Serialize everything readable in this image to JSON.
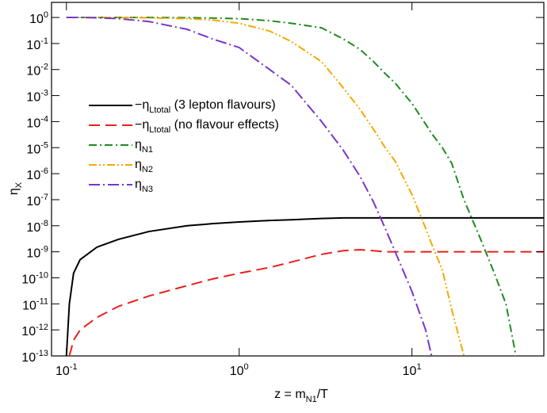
{
  "chart_data": {
    "type": "line",
    "xlabel": "z = m_{N1}/T",
    "ylabel": "η_{X}",
    "xscale": "log",
    "yscale": "log",
    "legend": "center left",
    "xlim": [
      0.082,
      58
    ],
    "ylim": [
      1e-13,
      3.8
    ],
    "xticks": [
      {
        "value": 0.1,
        "label": "10^{-1}"
      },
      {
        "value": 1,
        "label": "10^{0}"
      },
      {
        "value": 10,
        "label": "10^{1}"
      }
    ],
    "yticks": [
      {
        "value": 1,
        "label": "10^{0}"
      },
      {
        "value": 0.1,
        "label": "10^{-1}"
      },
      {
        "value": 0.01,
        "label": "10^{-2}"
      },
      {
        "value": 0.001,
        "label": "10^{-3}"
      },
      {
        "value": 0.0001,
        "label": "10^{-4}"
      },
      {
        "value": 1e-05,
        "label": "10^{-5}"
      },
      {
        "value": 1e-06,
        "label": "10^{-6}"
      },
      {
        "value": 1e-07,
        "label": "10^{-7}"
      },
      {
        "value": 1e-08,
        "label": "10^{-8}"
      },
      {
        "value": 1e-09,
        "label": "10^{-9}"
      },
      {
        "value": 1e-10,
        "label": "10^{-10}"
      },
      {
        "value": 1e-11,
        "label": "10^{-11}"
      },
      {
        "value": 1e-12,
        "label": "10^{-12}"
      },
      {
        "value": 1e-13,
        "label": "10^{-13}"
      }
    ],
    "x": [
      0.1,
      0.104,
      0.11,
      0.12,
      0.15,
      0.2,
      0.3,
      0.5,
      0.7,
      1,
      1.5,
      2,
      3,
      4,
      5,
      6,
      7,
      8,
      10,
      12,
      13,
      15,
      17,
      20,
      25,
      30,
      35,
      40,
      50,
      58
    ],
    "series": [
      {
        "name": "−η_{Ltotal}  (3 lepton flavours)",
        "color": "#000000",
        "dash": "solid",
        "values": [
          1e-13,
          1e-11,
          1.5e-10,
          5e-10,
          1.5e-09,
          3e-09,
          6e-09,
          1e-08,
          1.2e-08,
          1.4e-08,
          1.6e-08,
          1.7e-08,
          1.9e-08,
          2e-08,
          2e-08,
          2e-08,
          2e-08,
          2e-08,
          2e-08,
          2e-08,
          2e-08,
          2e-08,
          2e-08,
          2e-08,
          2e-08,
          2e-08,
          2e-08,
          2e-08,
          2e-08,
          2e-08
        ]
      },
      {
        "name": "−η_{Ltotal}  (no flavour effects)",
        "color": "#e8211c",
        "dash": "dashed",
        "values": [
          null,
          1e-13,
          4e-13,
          1e-12,
          3e-12,
          8e-12,
          2e-11,
          5e-11,
          9e-11,
          1.5e-10,
          2.5e-10,
          4e-10,
          8e-10,
          1.1e-09,
          1.2e-09,
          1.1e-09,
          1e-09,
          1e-09,
          1e-09,
          1e-09,
          1e-09,
          1e-09,
          1e-09,
          1e-09,
          1e-09,
          1e-09,
          1e-09,
          1e-09,
          1e-09,
          1e-09
        ]
      },
      {
        "name": "η_{N1}",
        "color": "#1e8c1e",
        "dash": "dashdot",
        "values": [
          1,
          1,
          1,
          1,
          1,
          1,
          1,
          0.98,
          0.95,
          0.9,
          0.75,
          0.6,
          0.4,
          0.15,
          0.06,
          0.02,
          0.007,
          0.003,
          0.0005,
          8e-05,
          3.5e-05,
          1e-05,
          2.5e-06,
          1e-07,
          3e-09,
          1.5e-10,
          1e-11,
          1e-13,
          null,
          null
        ]
      },
      {
        "name": "η_{N2}",
        "color": "#f5a800",
        "dash": "dashdotdot",
        "values": [
          1,
          1,
          1,
          1,
          1,
          0.99,
          0.97,
          0.9,
          0.8,
          0.6,
          0.3,
          0.12,
          0.02,
          0.002,
          0.0003,
          5e-05,
          1e-05,
          3e-06,
          1.6e-07,
          8e-09,
          2e-09,
          2e-10,
          6e-12,
          1e-13,
          null,
          null,
          null,
          null,
          null,
          null
        ]
      },
      {
        "name": "η_{N3}",
        "color": "#7a35c8",
        "dash": "longdashdot",
        "values": [
          1,
          1,
          1,
          1,
          0.97,
          0.9,
          0.7,
          0.35,
          0.15,
          0.07,
          0.01,
          0.0025,
          0.0001,
          8e-06,
          8e-07,
          8e-08,
          8e-09,
          1e-09,
          3e-11,
          1e-12,
          1e-13,
          null,
          null,
          null,
          null,
          null,
          null,
          null,
          null,
          null
        ]
      }
    ]
  }
}
